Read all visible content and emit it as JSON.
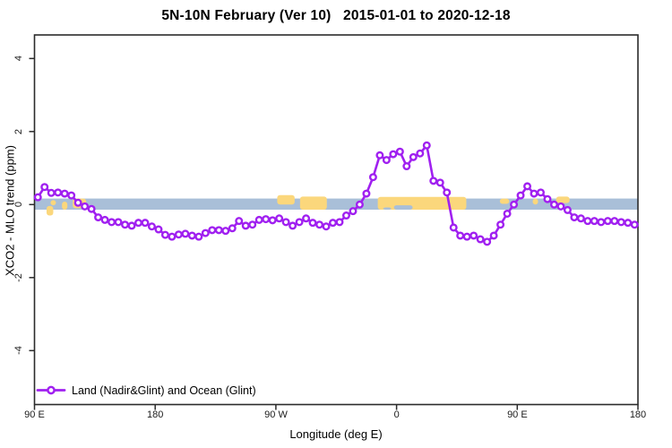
{
  "chart": {
    "title": "5N-10N February (Ver 10)   2015-01-01 to 2020-12-18"
  },
  "legend": {
    "label": "Land (Nadir&Glint) and Ocean (Glint)"
  },
  "chart_data": {
    "type": "line",
    "title": "5N-10N February (Ver 10)   2015-01-01 to 2020-12-18",
    "xlabel": "Longitude (deg E)",
    "ylabel": "XCO2 - MLO trend (ppm)",
    "xlim": [
      90,
      540
    ],
    "ylim": [
      -5.6,
      4.65
    ],
    "grid": false,
    "xtick_labels": [
      "90 E",
      "180",
      "90 W",
      "0",
      "90 E",
      "180"
    ],
    "xtick_lons": [
      90,
      180,
      270,
      360,
      450,
      540
    ],
    "ytick_labels": [
      "4",
      "2",
      "0",
      "-2",
      "-4"
    ],
    "ytick_values": [
      4,
      2,
      0,
      -2,
      -4
    ],
    "legend_position": "bottom-left-inside",
    "series": [
      {
        "name": "Land (Nadir&Glint) and Ocean (Glint)",
        "color": "#A020F0",
        "marker": "open-circle",
        "marker_fill": "#ffffff",
        "x": [
          92.5,
          97.5,
          102.5,
          107.5,
          112.5,
          117.5,
          122.5,
          127.5,
          132.5,
          137.5,
          142.5,
          147.5,
          152.5,
          157.5,
          162.5,
          167.5,
          172.5,
          177.5,
          182.5,
          187.5,
          192.5,
          197.5,
          202.5,
          207.5,
          212.5,
          217.5,
          222.5,
          227.5,
          232.5,
          237.5,
          242.5,
          247.5,
          252.5,
          257.5,
          262.5,
          267.5,
          272.5,
          277.5,
          282.5,
          287.5,
          292.5,
          297.5,
          302.5,
          307.5,
          312.5,
          317.5,
          322.5,
          327.5,
          332.5,
          337.5,
          342.5,
          347.5,
          352.5,
          357.5,
          362.5,
          367.5,
          372.5,
          377.5,
          382.5,
          387.5,
          392.5,
          397.5,
          402.5,
          407.5,
          412.5,
          417.5,
          422.5,
          427.5,
          432.5,
          437.5,
          442.5,
          447.5,
          452.5,
          457.5,
          462.5,
          467.5,
          472.5,
          477.5,
          482.5,
          487.5,
          492.5,
          497.5,
          502.5,
          507.5,
          512.5,
          517.5,
          522.5,
          527.5,
          532.5,
          537.5
        ],
        "values": [
          0.2,
          0.48,
          0.32,
          0.33,
          0.3,
          0.25,
          0.05,
          -0.05,
          -0.12,
          -0.35,
          -0.42,
          -0.48,
          -0.48,
          -0.55,
          -0.58,
          -0.5,
          -0.5,
          -0.6,
          -0.68,
          -0.83,
          -0.88,
          -0.82,
          -0.8,
          -0.85,
          -0.88,
          -0.78,
          -0.7,
          -0.7,
          -0.72,
          -0.65,
          -0.45,
          -0.58,
          -0.55,
          -0.42,
          -0.4,
          -0.43,
          -0.38,
          -0.48,
          -0.58,
          -0.48,
          -0.38,
          -0.5,
          -0.55,
          -0.6,
          -0.5,
          -0.48,
          -0.3,
          -0.18,
          0.0,
          0.3,
          0.75,
          1.35,
          1.22,
          1.38,
          1.45,
          1.05,
          1.3,
          1.4,
          1.62,
          0.65,
          0.6,
          0.33,
          -0.63,
          -0.85,
          -0.88,
          -0.85,
          -0.95,
          -1.02,
          -0.85,
          -0.55,
          -0.25,
          0.0,
          0.25,
          0.5,
          0.3,
          0.33,
          0.15,
          0.0,
          -0.05,
          -0.15,
          -0.35,
          -0.38,
          -0.45,
          -0.45,
          -0.48,
          -0.45,
          -0.45,
          -0.48,
          -0.5,
          -0.55
        ]
      }
    ],
    "geo_band": {
      "description": "5N-10N latitude strip map: ocean band with land silhouettes",
      "ocean_color": "#A9BFD8",
      "land_color": "#FBD77C",
      "ppm_top": 0.165,
      "ppm_bottom": -0.14,
      "land_segments": [
        {
          "lon0": 99,
          "lon1": 104,
          "top": -0.04,
          "bottom": -0.3
        },
        {
          "lon0": 102,
          "lon1": 106,
          "top": 0.12,
          "bottom": -0.02
        },
        {
          "lon0": 110.5,
          "lon1": 114.5,
          "top": 0.08,
          "bottom": -0.14
        },
        {
          "lon0": 118.5,
          "lon1": 128.5,
          "top": 0.165,
          "bottom": -0.1
        },
        {
          "lon0": 271,
          "lon1": 284,
          "top": 0.26,
          "bottom": 0.0
        },
        {
          "lon0": 288,
          "lon1": 308,
          "top": 0.22,
          "bottom": -0.14
        },
        {
          "lon0": 346,
          "lon1": 412,
          "top": 0.21,
          "bottom": -0.14
        },
        {
          "lon0": 437,
          "lon1": 444,
          "top": 0.165,
          "bottom": 0.02
        },
        {
          "lon0": 461.5,
          "lon1": 465.5,
          "top": 0.165,
          "bottom": 0.0
        },
        {
          "lon0": 479,
          "lon1": 489,
          "top": 0.22,
          "bottom": 0.04
        }
      ],
      "water_notches": [
        {
          "lon0": 350,
          "lon1": 356,
          "top": -0.08,
          "bottom": -0.14
        },
        {
          "lon0": 358,
          "lon1": 372,
          "top": -0.02,
          "bottom": -0.14
        }
      ]
    }
  }
}
